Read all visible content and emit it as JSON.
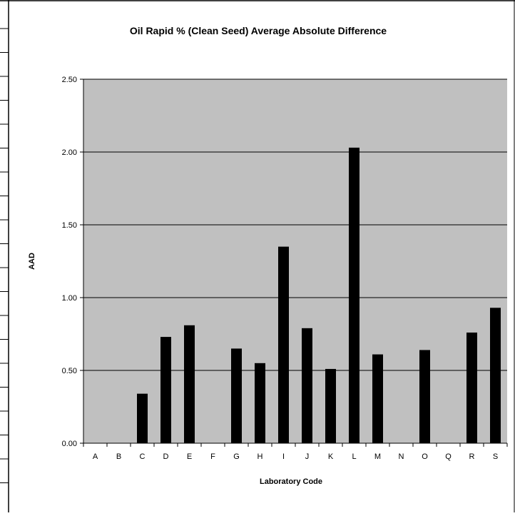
{
  "chart_data": {
    "type": "bar",
    "title": "Oil Rapid % (Clean Seed) Average Absolute Difference",
    "xlabel": "Laboratory Code",
    "ylabel": "AAD",
    "categories": [
      "A",
      "B",
      "C",
      "D",
      "E",
      "F",
      "G",
      "H",
      "I",
      "J",
      "K",
      "L",
      "M",
      "N",
      "O",
      "Q",
      "R",
      "S"
    ],
    "values": [
      null,
      null,
      0.34,
      0.73,
      0.81,
      null,
      0.65,
      0.55,
      1.35,
      0.79,
      0.51,
      2.03,
      0.61,
      null,
      0.64,
      null,
      0.76,
      0.93
    ],
    "ylim": [
      0,
      2.5
    ],
    "yticks": [
      "0.00",
      "0.50",
      "1.00",
      "1.50",
      "2.00",
      "2.50"
    ],
    "grid": true,
    "colors": {
      "plot_background": "#c0c0c0",
      "bar": "#000000",
      "gridline": "#000000"
    }
  }
}
